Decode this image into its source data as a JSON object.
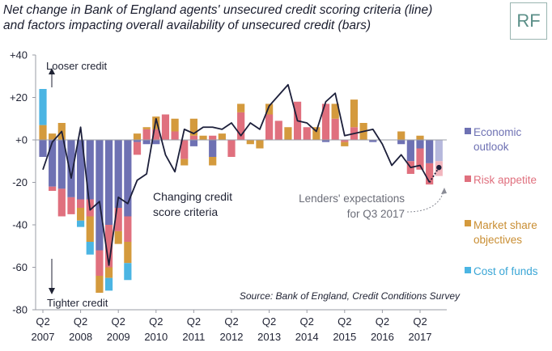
{
  "title": {
    "line1": "Net change in Bank of England agents' unsecured credit scoring criteria (line)",
    "line2": "and factors impacting overall availability of unsecured credit (bars)"
  },
  "logo_text": "RF",
  "annotations": {
    "looser": "Looser credit",
    "tighter": "Tighter credit",
    "changing_line1": "Changing credit",
    "changing_line2": "score criteria",
    "expect_line1": "Lenders' expectations",
    "expect_line2": "for Q3 2017",
    "source": "Source: Bank of England, Credit Conditions Survey"
  },
  "colors": {
    "economic_outlook": "#6e71b3",
    "risk_appetite": "#e0707e",
    "market_share": "#d49a3d",
    "cost_of_funds": "#4bb5e3",
    "line": "#1c1f3a",
    "expectation_economic": "#b6b8dc",
    "expectation_risk": "#f2b6be"
  },
  "chart_data": {
    "type": "bar",
    "ylim": [
      -80,
      40
    ],
    "yticks": [
      40,
      20,
      0,
      -20,
      -40,
      -60,
      -80
    ],
    "ytick_labels": [
      "+40",
      "+20",
      "+0",
      "-20",
      "-40",
      "-60",
      "-80"
    ],
    "x_ticks": [
      {
        "q": 0,
        "top": "Q2",
        "bottom": "2007"
      },
      {
        "q": 4,
        "top": "Q2",
        "bottom": "2008"
      },
      {
        "q": 8,
        "top": "Q2",
        "bottom": "2009"
      },
      {
        "q": 12,
        "top": "Q2",
        "bottom": "2010"
      },
      {
        "q": 16,
        "top": "Q2",
        "bottom": "2011"
      },
      {
        "q": 20,
        "top": "Q2",
        "bottom": "2012"
      },
      {
        "q": 24,
        "top": "Q2",
        "bottom": "2013"
      },
      {
        "q": 28,
        "top": "Q2",
        "bottom": "2014"
      },
      {
        "q": 32,
        "top": "Q2",
        "bottom": "2015"
      },
      {
        "q": 36,
        "top": "Q2",
        "bottom": "2016"
      },
      {
        "q": 40,
        "top": "Q2",
        "bottom": "2017"
      }
    ],
    "series": [
      {
        "name": "Economic outlook",
        "legend": "Economic\noutlook",
        "color_key": "economic_outlook",
        "values": [
          -8,
          -22,
          -23,
          -27,
          -28,
          -28,
          -52,
          -40,
          -32,
          -36,
          -1,
          -2,
          -2,
          0,
          0,
          0,
          -3,
          0,
          -8,
          0,
          0,
          0,
          0,
          0,
          0,
          0,
          0,
          0,
          0,
          0,
          -1,
          0,
          0,
          0,
          0,
          -1,
          0,
          0,
          -2,
          -10,
          -4,
          -11
        ]
      },
      {
        "name": "Risk appetite",
        "legend": "Risk appetite",
        "color_key": "risk_appetite",
        "values": [
          0,
          -2,
          -13,
          -8,
          -4,
          -8,
          -12,
          -20,
          -11,
          -12,
          -6,
          5,
          5,
          12,
          4,
          -9,
          2,
          0,
          2,
          0,
          -8,
          13,
          0,
          0,
          12,
          9,
          0,
          18,
          6,
          0,
          17,
          10,
          -1,
          6,
          0,
          0,
          0,
          0,
          0,
          -6,
          -10,
          -10
        ]
      },
      {
        "name": "Market share objectives",
        "legend": "Market share\nobjectives",
        "color_key": "market_share",
        "values": [
          7,
          3,
          8,
          0,
          -6,
          -12,
          -8,
          -5,
          -6,
          -10,
          3,
          1,
          6,
          0,
          6,
          -3,
          8,
          2,
          -4,
          3,
          0,
          4,
          -2,
          -4,
          5,
          0,
          6,
          0,
          0,
          6,
          0,
          7,
          -2,
          13,
          8,
          0,
          0,
          0,
          4,
          0,
          2,
          0
        ]
      },
      {
        "name": "Cost of funds",
        "legend": "Cost of funds",
        "color_key": "cost_of_funds",
        "values": [
          17,
          0,
          0,
          0,
          -3,
          -6,
          0,
          -6,
          0,
          -8,
          0,
          0,
          0,
          0,
          0,
          0,
          0,
          0,
          0,
          0,
          0,
          0,
          0,
          0,
          0,
          0,
          0,
          0,
          0,
          0,
          0,
          0,
          0,
          0,
          0,
          0,
          0,
          0,
          0,
          0,
          0,
          0
        ]
      },
      {
        "name": "Changing credit score criteria",
        "type": "line",
        "color_key": "line",
        "values": [
          -14,
          -1,
          4,
          -18,
          6,
          -33,
          -29,
          -59,
          -27,
          -30,
          -19,
          -16,
          10,
          -7,
          -15,
          5,
          3,
          6,
          6,
          5,
          8,
          2,
          8,
          5,
          16,
          21,
          26,
          9,
          8,
          4,
          18,
          22,
          2,
          3,
          4,
          5,
          -2,
          -12,
          -7,
          -13,
          -12,
          -20
        ]
      }
    ],
    "expectation": {
      "label": "Lenders' expectations for Q3 2017",
      "q": 42,
      "economic_outlook": -10,
      "risk_appetite": -7,
      "line": -13
    },
    "legend_position": "right"
  }
}
